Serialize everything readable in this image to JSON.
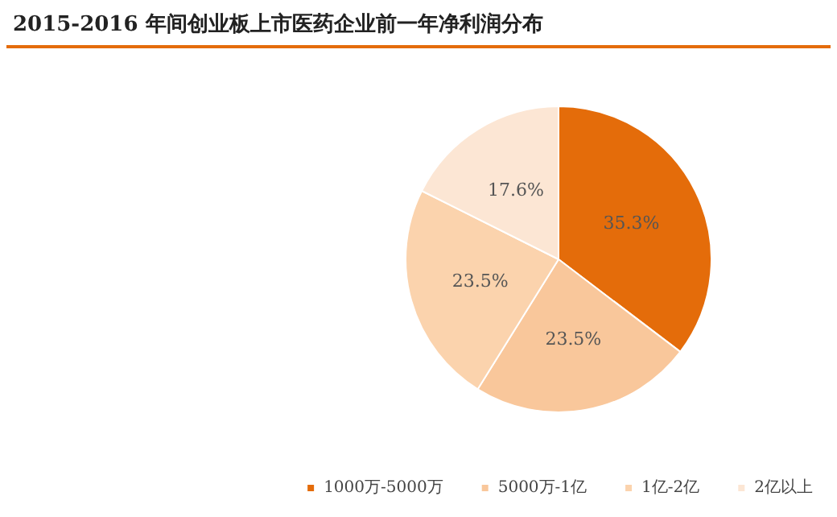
{
  "chart_data": {
    "type": "pie",
    "title": "2015-2016 年间创业板上市医药企业前一年净利润分布",
    "categories": [
      "1000万-5000万",
      "5000万-1亿",
      "1亿-2亿",
      "2亿以上"
    ],
    "values": [
      35.3,
      23.5,
      23.5,
      17.6
    ],
    "value_labels": [
      "35.3%",
      "23.5%",
      "23.5%",
      "17.6%"
    ],
    "colors": [
      "#e46c0a",
      "#f9c79b",
      "#fbd3ad",
      "#fce6d4"
    ],
    "legend": "bottom"
  }
}
